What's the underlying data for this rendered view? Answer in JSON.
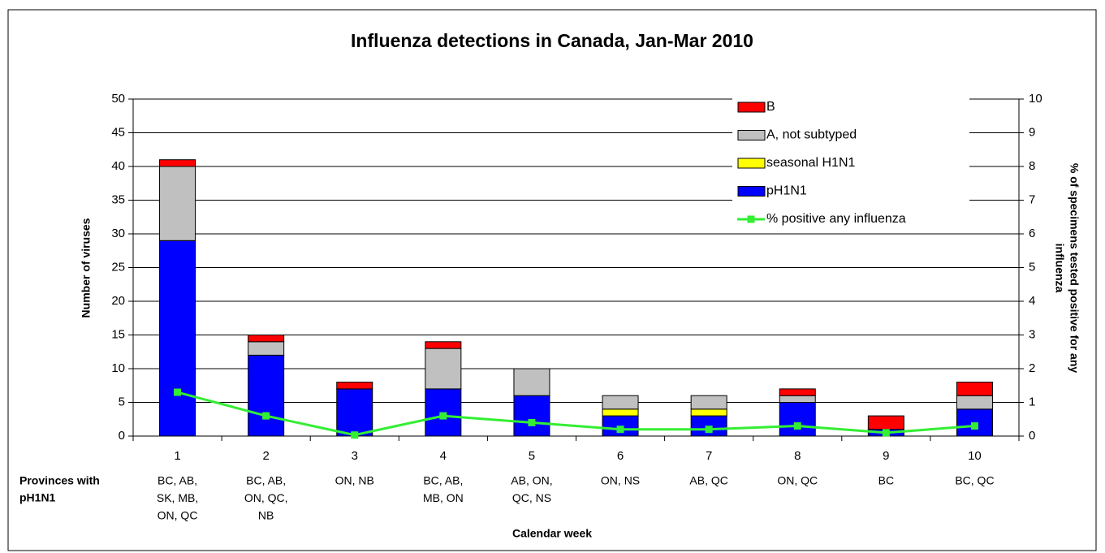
{
  "chart_data": {
    "type": "stacked-bar-line",
    "title": "Influenza detections in Canada, Jan-Mar 2010",
    "x_label": "Calendar week",
    "y_label": "Number of viruses",
    "y2_label": [
      "% of specimens tested positive for any",
      "influenza"
    ],
    "row_label": [
      "Provinces with",
      "pH1N1"
    ],
    "categories": [
      "1",
      "2",
      "3",
      "4",
      "5",
      "6",
      "7",
      "8",
      "9",
      "10"
    ],
    "provinces": [
      [
        "BC, AB,",
        "SK, MB,",
        "ON, QC"
      ],
      [
        "BC, AB,",
        "ON, QC,",
        "NB"
      ],
      [
        "ON, NB"
      ],
      [
        "BC, AB,",
        "MB, ON"
      ],
      [
        "AB, ON,",
        "QC, NS"
      ],
      [
        "ON, NS"
      ],
      [
        "AB, QC"
      ],
      [
        "ON, QC"
      ],
      [
        "BC"
      ],
      [
        "BC, QC"
      ]
    ],
    "series": [
      {
        "name": "pH1N1",
        "color": "#0000ff",
        "values": [
          29,
          12,
          7,
          7,
          6,
          3,
          3,
          5,
          1,
          4
        ]
      },
      {
        "name": "seasonal H1N1",
        "color": "#ffff00",
        "values": [
          0,
          0,
          0,
          0,
          0,
          1,
          1,
          0,
          0,
          0
        ]
      },
      {
        "name": "A, not subtyped",
        "color": "#c0c0c0",
        "values": [
          11,
          2,
          0,
          6,
          4,
          2,
          2,
          1,
          0,
          2
        ]
      },
      {
        "name": "B",
        "color": "#ff0000",
        "values": [
          1,
          1,
          1,
          1,
          0,
          0,
          0,
          1,
          2,
          2
        ]
      },
      {
        "name": "% positive any influenza",
        "color": "#33ee33",
        "axis": "y2",
        "line": true,
        "values": [
          1.3,
          0.6,
          0.03,
          0.6,
          0.4,
          0.2,
          0.2,
          0.3,
          0.1,
          0.3
        ]
      }
    ],
    "ylim": [
      0,
      50
    ],
    "yticks": [
      0,
      5,
      10,
      15,
      20,
      25,
      30,
      35,
      40,
      45,
      50
    ],
    "y2lim": [
      0,
      10
    ],
    "y2ticks": [
      0,
      1,
      2,
      3,
      4,
      5,
      6,
      7,
      8,
      9,
      10
    ],
    "grid": true
  }
}
